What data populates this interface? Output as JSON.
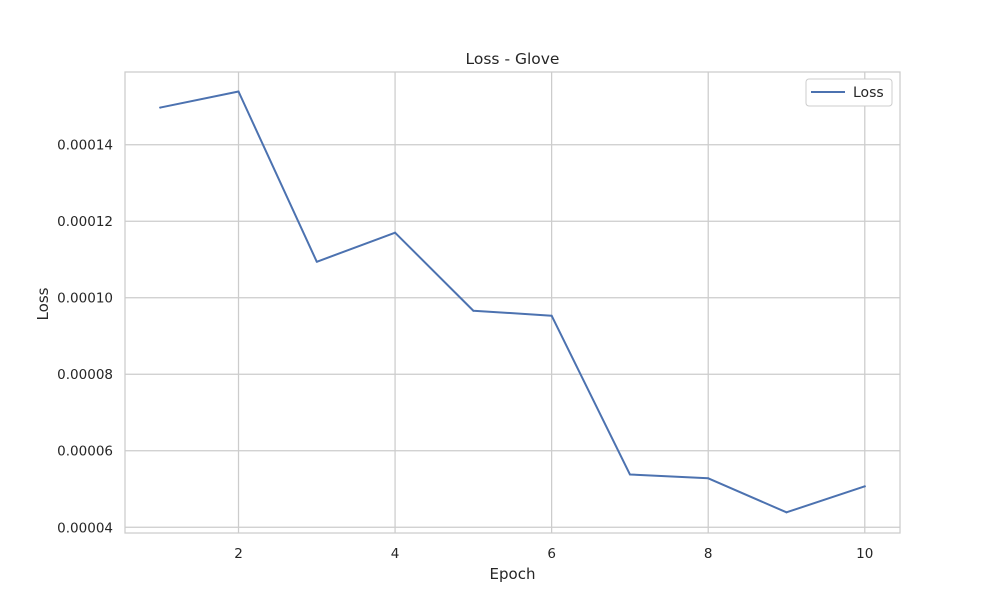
{
  "chart_data": {
    "type": "line",
    "title": "Loss - Glove",
    "xlabel": "Epoch",
    "ylabel": "Loss",
    "x": [
      1,
      2,
      3,
      4,
      5,
      6,
      7,
      8,
      9,
      10
    ],
    "series": [
      {
        "name": "Loss",
        "color": "#4c72b0",
        "values": [
          0.0001497,
          0.0001539,
          0.0001094,
          0.000117,
          9.66e-05,
          9.53e-05,
          5.38e-05,
          5.28e-05,
          4.39e-05,
          5.07e-05
        ]
      }
    ],
    "xticks": [
      2,
      4,
      6,
      8,
      10
    ],
    "xtick_labels": [
      "2",
      "4",
      "6",
      "8",
      "10"
    ],
    "yticks": [
      4e-05,
      6e-05,
      8e-05,
      0.0001,
      0.00012,
      0.00014
    ],
    "ytick_labels": [
      "0.00004",
      "0.00006",
      "0.00008",
      "0.00010",
      "0.00012",
      "0.00014"
    ],
    "xlim": [
      0.55,
      10.45
    ],
    "ylim": [
      3.85e-05,
      0.000159
    ],
    "grid": true,
    "legend_position": "top-right",
    "grid_color": "#cccccc",
    "axis_color": "#cccccc"
  }
}
